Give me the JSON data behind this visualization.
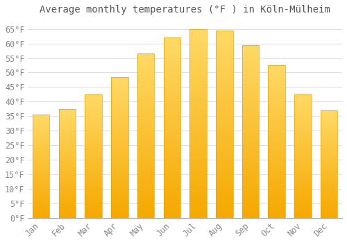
{
  "title": "Average monthly temperatures (°F ) in Köln-Mülheim",
  "months": [
    "Jan",
    "Feb",
    "Mar",
    "Apr",
    "May",
    "Jun",
    "Jul",
    "Aug",
    "Sep",
    "Oct",
    "Nov",
    "Dec"
  ],
  "values": [
    35.5,
    37.5,
    42.5,
    48.5,
    56.5,
    62.0,
    65.0,
    64.5,
    59.5,
    52.5,
    42.5,
    37.0
  ],
  "bar_color_bottom": "#F5A800",
  "bar_color_top": "#FFD966",
  "bar_edge_color": "#E8A000",
  "background_color": "#FFFFFF",
  "grid_color": "#E0E0E0",
  "text_color": "#888888",
  "title_color": "#555555",
  "ylim": [
    0,
    68
  ],
  "yticks": [
    0,
    5,
    10,
    15,
    20,
    25,
    30,
    35,
    40,
    45,
    50,
    55,
    60,
    65
  ],
  "title_fontsize": 10,
  "tick_fontsize": 8.5,
  "bar_width": 0.65
}
